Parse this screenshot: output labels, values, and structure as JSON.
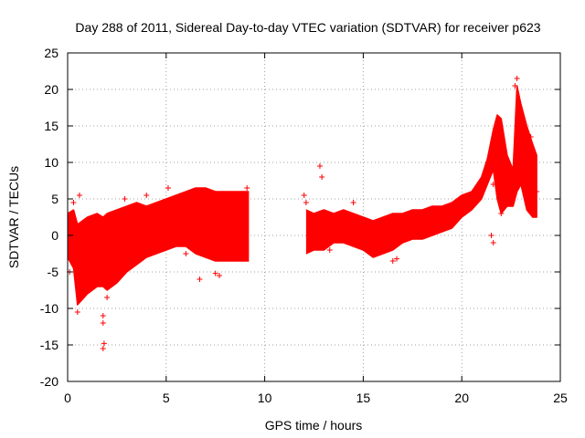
{
  "chart_data": {
    "type": "scatter",
    "title": "Day 288 of 2011, Sidereal Day-to-day VTEC variation (SDTVAR) for receiver p623",
    "xlabel": "GPS time / hours",
    "ylabel": "SDTVAR / TECUs",
    "xlim": [
      0,
      25
    ],
    "ylim": [
      -20,
      25
    ],
    "x_ticks": [
      0,
      5,
      10,
      15,
      20,
      25
    ],
    "y_ticks": [
      -20,
      -15,
      -10,
      -5,
      0,
      5,
      10,
      15,
      20,
      25
    ],
    "grid": true,
    "marker": "+",
    "color": "#ff0000",
    "series": [
      {
        "name": "SDTVAR",
        "envelope": {
          "x": [
            0.0,
            0.3,
            0.5,
            1.0,
            1.5,
            1.8,
            2.0,
            2.5,
            3.0,
            3.5,
            4.0,
            4.5,
            5.0,
            5.5,
            6.0,
            6.5,
            7.0,
            7.5,
            8.0,
            8.5,
            9.0,
            9.2,
            12.1,
            12.5,
            13.0,
            13.5,
            14.0,
            14.5,
            15.0,
            15.5,
            16.0,
            16.5,
            17.0,
            17.5,
            18.0,
            18.5,
            19.0,
            19.5,
            20.0,
            20.5,
            21.0,
            21.3,
            21.6,
            21.8,
            22.0,
            22.3,
            22.6,
            22.8,
            23.0,
            23.3,
            23.6,
            23.8
          ],
          "upper": [
            3.0,
            3.5,
            1.5,
            2.5,
            3.0,
            2.5,
            3.0,
            3.5,
            4.0,
            4.5,
            4.0,
            4.5,
            5.0,
            5.5,
            6.0,
            6.5,
            6.5,
            6.0,
            6.0,
            6.0,
            6.0,
            6.0,
            3.5,
            3.0,
            3.5,
            3.0,
            3.5,
            3.0,
            2.5,
            2.0,
            2.5,
            3.0,
            3.0,
            3.5,
            3.5,
            4.0,
            4.0,
            4.5,
            5.5,
            6.0,
            8.0,
            10.5,
            14.5,
            16.5,
            16.0,
            11.0,
            9.0,
            20.5,
            18.0,
            15.0,
            12.5,
            11.0
          ],
          "lower": [
            -3.0,
            -4.5,
            -9.5,
            -8.0,
            -7.0,
            -7.0,
            -7.5,
            -6.5,
            -5.0,
            -4.0,
            -3.0,
            -2.5,
            -2.0,
            -1.5,
            -1.5,
            -2.5,
            -3.0,
            -3.5,
            -3.5,
            -3.5,
            -3.5,
            -3.5,
            -2.5,
            -2.0,
            -2.0,
            -1.0,
            -1.0,
            -1.5,
            -2.0,
            -3.0,
            -2.5,
            -2.0,
            -1.0,
            -0.5,
            -0.5,
            0.0,
            0.5,
            1.0,
            2.5,
            3.5,
            5.0,
            7.0,
            9.0,
            5.0,
            3.0,
            4.0,
            4.0,
            6.0,
            7.0,
            3.5,
            2.5,
            2.5
          ]
        },
        "outliers": [
          [
            0.1,
            -5.0
          ],
          [
            0.3,
            4.5
          ],
          [
            0.5,
            -10.5
          ],
          [
            0.6,
            5.5
          ],
          [
            1.8,
            -12.0
          ],
          [
            1.8,
            -15.5
          ],
          [
            1.85,
            -14.8
          ],
          [
            1.8,
            -11.0
          ],
          [
            2.0,
            -8.5
          ],
          [
            2.9,
            5.0
          ],
          [
            4.0,
            5.5
          ],
          [
            5.1,
            6.5
          ],
          [
            6.0,
            -2.5
          ],
          [
            6.7,
            -6.0
          ],
          [
            7.5,
            -5.2
          ],
          [
            7.7,
            -5.5
          ],
          [
            9.1,
            6.5
          ],
          [
            12.0,
            5.5
          ],
          [
            12.1,
            4.5
          ],
          [
            12.8,
            9.5
          ],
          [
            12.9,
            8.0
          ],
          [
            13.3,
            -2.0
          ],
          [
            14.5,
            4.5
          ],
          [
            16.5,
            -3.5
          ],
          [
            16.7,
            -3.2
          ],
          [
            21.6,
            7.0
          ],
          [
            21.7,
            11.0
          ],
          [
            21.5,
            0.0
          ],
          [
            21.6,
            -1.0
          ],
          [
            22.0,
            3.0
          ],
          [
            22.7,
            20.5
          ],
          [
            22.8,
            21.5
          ],
          [
            23.5,
            13.5
          ],
          [
            23.8,
            6.0
          ]
        ]
      }
    ]
  }
}
